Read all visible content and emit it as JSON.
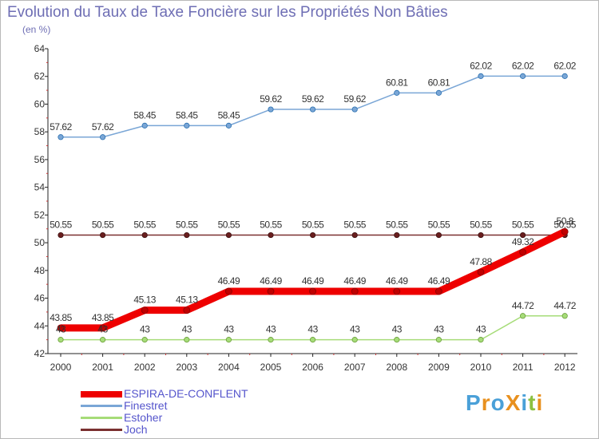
{
  "colors": {
    "espira": "#ee0000",
    "finestret": "#7aa6d6",
    "estoher": "#a6dc78",
    "joch": "#7a3030",
    "title": "#6e6eb4",
    "axis": "#222222",
    "tick_red": "#cc3333"
  },
  "logo": {
    "text": "ProXiti",
    "chars": [
      {
        "ch": "P",
        "color": "#4aa0d8"
      },
      {
        "ch": "r",
        "color": "#e8901e"
      },
      {
        "ch": "o",
        "color": "#4aa0d8"
      },
      {
        "ch": "X",
        "color": "#e8901e"
      },
      {
        "ch": "i",
        "color": "#4aa0d8"
      },
      {
        "ch": "t",
        "color": "#8cc040"
      },
      {
        "ch": "i",
        "color": "#e8901e"
      }
    ]
  },
  "chart_data": {
    "type": "line",
    "title": "Evolution du Taux de Taxe Foncière sur les Propriétés Non Bâties",
    "unit_label": "(en %)",
    "xlabel": "",
    "ylabel": "",
    "categories": [
      "2000",
      "2001",
      "2002",
      "2003",
      "2004",
      "2005",
      "2006",
      "2007",
      "2008",
      "2009",
      "2010",
      "2011",
      "2012"
    ],
    "ylim": [
      42,
      64
    ],
    "yticks": [
      42,
      44,
      46,
      48,
      50,
      52,
      54,
      56,
      58,
      60,
      62,
      64
    ],
    "grid": false,
    "legend_position": "bottom-left",
    "series": [
      {
        "name": "ESPIRA-DE-CONFLENT",
        "color": "#ee0000",
        "thick": true,
        "values": [
          43.85,
          43.85,
          45.13,
          45.13,
          46.49,
          46.49,
          46.49,
          46.49,
          46.49,
          46.49,
          47.88,
          49.32,
          50.8
        ],
        "labels": [
          "43.85",
          "43.85",
          "45.13",
          "45.13",
          "46.49",
          "46.49",
          "46.49",
          "46.49",
          "46.49",
          "46.49",
          "47.88",
          "49.32",
          "50.8"
        ]
      },
      {
        "name": "Finestret",
        "color": "#7aa6d6",
        "thick": false,
        "values": [
          57.62,
          57.62,
          58.45,
          58.45,
          58.45,
          59.62,
          59.62,
          59.62,
          60.81,
          60.81,
          62.02,
          62.02,
          62.02
        ],
        "labels": [
          "57.62",
          "57.62",
          "58.45",
          "58.45",
          "58.45",
          "59.62",
          "59.62",
          "59.62",
          "60.81",
          "60.81",
          "62.02",
          "62.02",
          "62.02"
        ]
      },
      {
        "name": "Estoher",
        "color": "#a6dc78",
        "thick": false,
        "values": [
          43,
          43,
          43,
          43,
          43,
          43,
          43,
          43,
          43,
          43,
          43,
          44.72,
          44.72
        ],
        "labels": [
          "43",
          "43",
          "43",
          "43",
          "43",
          "43",
          "43",
          "43",
          "43",
          "43",
          "43",
          "44.72",
          "44.72"
        ]
      },
      {
        "name": "Joch",
        "color": "#7a3030",
        "thick": false,
        "values": [
          50.55,
          50.55,
          50.55,
          50.55,
          50.55,
          50.55,
          50.55,
          50.55,
          50.55,
          50.55,
          50.55,
          50.55,
          50.55
        ],
        "labels": [
          "50.55",
          "50.55",
          "50.55",
          "50.55",
          "50.55",
          "50.55",
          "50.55",
          "50.55",
          "50.55",
          "50.55",
          "50.55",
          "50.55",
          "50.55"
        ]
      }
    ]
  }
}
